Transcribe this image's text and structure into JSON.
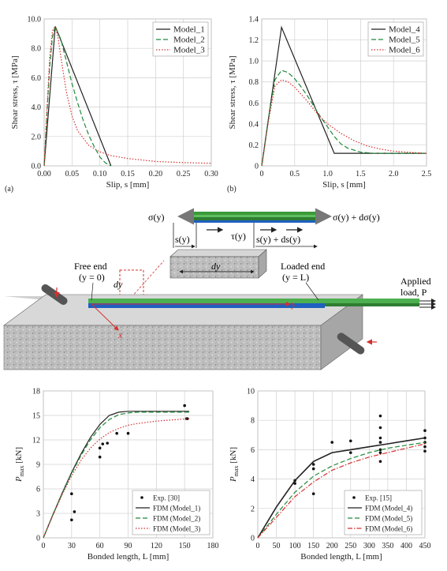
{
  "figure": {
    "panel_a": {
      "tag": "(a)",
      "chart_data": {
        "type": "line",
        "xlabel": "Slip, s [mm]",
        "ylabel": "Shear stress, τ [MPa]",
        "xlim": [
          0,
          0.3
        ],
        "ylim": [
          0,
          10
        ],
        "xticks": [
          "0.00",
          "0.05",
          "0.10",
          "0.15",
          "0.20",
          "0.25",
          "0.30"
        ],
        "yticks": [
          "0.0",
          "2.0",
          "4.0",
          "6.0",
          "8.0",
          "10.0"
        ],
        "grid": true,
        "legend": "top-right",
        "series": [
          {
            "name": "Model_1",
            "color": "#222222",
            "dash": "solid",
            "x": [
              0,
              0.02,
              0.12
            ],
            "y": [
              0,
              9.5,
              0
            ]
          },
          {
            "name": "Model_2",
            "color": "#1f8a3a",
            "dash": "dashed",
            "x": [
              0,
              0.005,
              0.01,
              0.015,
              0.02,
              0.03,
              0.04,
              0.05,
              0.06,
              0.07,
              0.08,
              0.09,
              0.1,
              0.11,
              0.12
            ],
            "y": [
              0,
              3.5,
              6.8,
              8.8,
              9.5,
              8.6,
              7.1,
              5.6,
              4.3,
              3.1,
              2.1,
              1.3,
              0.6,
              0.2,
              0
            ]
          },
          {
            "name": "Model_3",
            "color": "#d43030",
            "dash": "dotted",
            "x": [
              0,
              0.005,
              0.01,
              0.015,
              0.02,
              0.025,
              0.03,
              0.04,
              0.05,
              0.06,
              0.08,
              0.1,
              0.12,
              0.15,
              0.2,
              0.25,
              0.3
            ],
            "y": [
              0,
              3.8,
              7.4,
              9.2,
              9.5,
              8.7,
              7.4,
              5.0,
              3.4,
              2.4,
              1.4,
              0.95,
              0.7,
              0.5,
              0.3,
              0.22,
              0.17
            ]
          }
        ]
      }
    },
    "panel_b": {
      "tag": "(b)",
      "chart_data": {
        "type": "line",
        "xlabel": "Slip, s [mm]",
        "ylabel": "Shear stress, τ [MPa]",
        "xlim": [
          0,
          2.5
        ],
        "ylim": [
          0,
          1.4
        ],
        "xticks": [
          "0",
          "0.5",
          "1.0",
          "1.5",
          "2.0",
          "2.5"
        ],
        "yticks": [
          "0",
          "0.2",
          "0.4",
          "0.6",
          "0.8",
          "1.0",
          "1.2",
          "1.4"
        ],
        "grid": true,
        "legend": "top-right",
        "series": [
          {
            "name": "Model_4",
            "color": "#222222",
            "dash": "solid",
            "x": [
              0,
              0.3,
              1.1,
              2.5
            ],
            "y": [
              0,
              1.32,
              0.12,
              0.12
            ]
          },
          {
            "name": "Model_5",
            "color": "#1f8a3a",
            "dash": "dashed",
            "x": [
              0,
              0.1,
              0.2,
              0.3,
              0.4,
              0.5,
              0.6,
              0.7,
              0.8,
              0.9,
              1.0,
              1.1,
              1.2,
              1.3,
              1.5,
              1.7,
              2.0,
              2.5
            ],
            "y": [
              0,
              0.45,
              0.82,
              0.91,
              0.89,
              0.83,
              0.75,
              0.66,
              0.56,
              0.46,
              0.37,
              0.28,
              0.21,
              0.17,
              0.13,
              0.12,
              0.12,
              0.12
            ]
          },
          {
            "name": "Model_6",
            "color": "#d43030",
            "dash": "dotted",
            "x": [
              0,
              0.1,
              0.2,
              0.3,
              0.4,
              0.5,
              0.6,
              0.7,
              0.8,
              0.9,
              1.0,
              1.2,
              1.4,
              1.6,
              1.8,
              2.0,
              2.2,
              2.5
            ],
            "y": [
              0,
              0.42,
              0.76,
              0.82,
              0.8,
              0.75,
              0.68,
              0.61,
              0.53,
              0.46,
              0.4,
              0.31,
              0.24,
              0.19,
              0.16,
              0.14,
              0.13,
              0.12
            ]
          }
        ]
      }
    },
    "diagram": {
      "sigma_left": "σ(y)",
      "sigma_right": "σ(y) + dσ(y)",
      "s_y": "s(y)",
      "tau_y": "τ(y)",
      "s_y_dsy": "s(y) + ds(y)",
      "dy_box": "dy",
      "dy_ref": "dy",
      "free_end": "Free end",
      "free_end_cond": "(y = 0)",
      "loaded_end": "Loaded end",
      "loaded_end_cond": "(y = L)",
      "applied": "Applied",
      "applied_load": "load, P",
      "axis_x": "x",
      "axis_y": "y"
    },
    "panel_c": {
      "chart_data": {
        "type": "line",
        "xlabel": "Bonded length, L [mm]",
        "ylabel": "P_max [kN]",
        "xlim": [
          0,
          180
        ],
        "ylim": [
          0,
          18
        ],
        "xticks": [
          "0",
          "30",
          "60",
          "90",
          "120",
          "150",
          "180"
        ],
        "yticks": [
          "0",
          "3",
          "6",
          "9",
          "12",
          "15",
          "18"
        ],
        "grid": true,
        "legend": "bottom-right",
        "scatter": {
          "name": "Exp. [30]",
          "x": [
            30,
            30,
            33,
            60,
            60,
            63,
            68,
            78,
            90,
            150,
            152,
            153
          ],
          "y": [
            2.2,
            5.4,
            3.2,
            9.9,
            11.0,
            11.5,
            11.6,
            12.8,
            12.8,
            16.2,
            14.6,
            14.6
          ]
        },
        "series": [
          {
            "name": "FDM (Model_1)",
            "color": "#222222",
            "dash": "solid",
            "x": [
              0,
              10,
              20,
              30,
              40,
              50,
              60,
              70,
              80,
              90,
              100,
              120,
              155
            ],
            "y": [
              0,
              2.8,
              5.5,
              8.0,
              10.3,
              12.3,
              13.9,
              15.0,
              15.4,
              15.5,
              15.5,
              15.5,
              15.5
            ]
          },
          {
            "name": "FDM (Model_2)",
            "color": "#1f8a3a",
            "dash": "dashed",
            "x": [
              0,
              10,
              20,
              30,
              40,
              50,
              60,
              70,
              80,
              90,
              100,
              120,
              155
            ],
            "y": [
              0,
              2.8,
              5.4,
              7.9,
              10.1,
              12.0,
              13.5,
              14.5,
              15.1,
              15.3,
              15.4,
              15.4,
              15.4
            ]
          },
          {
            "name": "FDM (Model_3)",
            "color": "#d43030",
            "dash": "dotted",
            "x": [
              0,
              10,
              20,
              30,
              40,
              50,
              60,
              70,
              80,
              90,
              100,
              120,
              155
            ],
            "y": [
              0,
              2.7,
              5.3,
              7.6,
              9.5,
              11.0,
              12.1,
              12.9,
              13.4,
              13.8,
              14.0,
              14.3,
              14.6
            ]
          }
        ]
      }
    },
    "panel_d": {
      "chart_data": {
        "type": "line",
        "xlabel": "Bonded length, L [mm]",
        "ylabel": "P_max [kN]",
        "xlim": [
          0,
          450
        ],
        "ylim": [
          0,
          10
        ],
        "xticks": [
          "0",
          "50",
          "100",
          "150",
          "200",
          "250",
          "300",
          "350",
          "400",
          "450"
        ],
        "yticks": [
          "0",
          "2",
          "4",
          "6",
          "8",
          "10"
        ],
        "grid": true,
        "legend": "bottom-right",
        "scatter": {
          "name": "Exp. [15]",
          "x": [
            100,
            100,
            150,
            150,
            150,
            200,
            250,
            250,
            330,
            330,
            330,
            330,
            330,
            330,
            330,
            450,
            450,
            450,
            450,
            450
          ],
          "y": [
            3.7,
            3.9,
            4.7,
            5.0,
            3.0,
            6.5,
            5.8,
            6.6,
            5.2,
            5.8,
            6.0,
            6.5,
            6.8,
            7.5,
            8.3,
            5.9,
            6.2,
            6.5,
            6.8,
            7.3
          ]
        },
        "series": [
          {
            "name": "FDM (Model_4)",
            "color": "#222222",
            "dash": "solid",
            "x": [
              0,
              50,
              100,
              150,
              200,
              250,
              300,
              350,
              400,
              450
            ],
            "y": [
              0,
              2.1,
              3.9,
              5.2,
              5.8,
              6.0,
              6.2,
              6.4,
              6.6,
              6.8
            ]
          },
          {
            "name": "FDM (Model_5)",
            "color": "#1f8a3a",
            "dash": "dashed",
            "x": [
              0,
              50,
              100,
              150,
              200,
              250,
              300,
              350,
              400,
              450
            ],
            "y": [
              0,
              1.6,
              3.1,
              4.2,
              4.9,
              5.4,
              5.8,
              6.1,
              6.3,
              6.5
            ]
          },
          {
            "name": "FDM (Model_6)",
            "color": "#d43030",
            "dash": "dashdot",
            "x": [
              0,
              50,
              100,
              150,
              200,
              250,
              300,
              350,
              400,
              450
            ],
            "y": [
              0,
              1.4,
              2.8,
              3.8,
              4.6,
              5.1,
              5.5,
              5.8,
              6.1,
              6.4
            ]
          }
        ]
      }
    }
  }
}
